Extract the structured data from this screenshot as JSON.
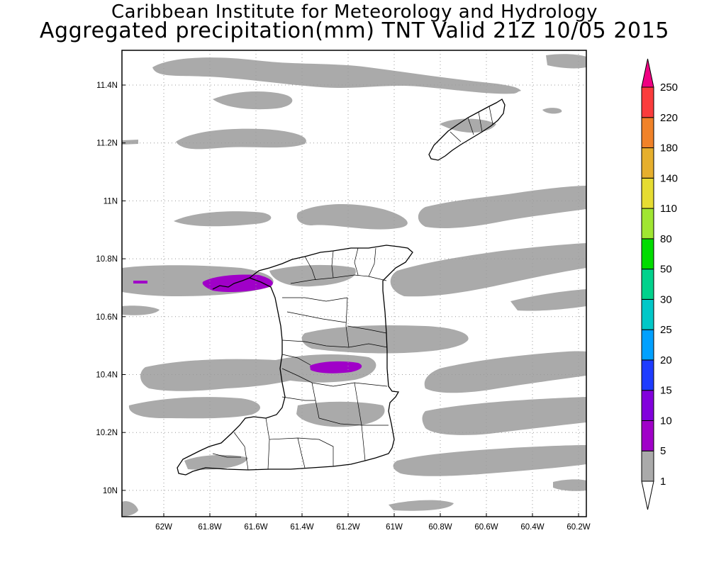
{
  "header": {
    "line1": "Caribbean Institute for Meteorology and Hydrology",
    "line2": "Aggregated precipitation(mm) TNT Valid 21Z 10/05 2015"
  },
  "axes": {
    "lon_ticks": [
      "62W",
      "61.8W",
      "61.6W",
      "61.4W",
      "61.2W",
      "61W",
      "60.8W",
      "60.6W",
      "60.4W",
      "60.2W"
    ],
    "lat_ticks": [
      "11.4N",
      "11.2N",
      "11N",
      "10.8N",
      "10.6N",
      "10.4N",
      "10.2N",
      "10N"
    ],
    "grid": true
  },
  "colorbar": {
    "labels": [
      "1",
      "5",
      "10",
      "15",
      "20",
      "25",
      "30",
      "50",
      "80",
      "110",
      "140",
      "180",
      "220",
      "250"
    ],
    "colors": [
      "#ffffff",
      "#aaaaaa",
      "#a000c8",
      "#8200dc",
      "#1e3cff",
      "#00a0ff",
      "#00c8c8",
      "#00d28c",
      "#00dc00",
      "#a0e632",
      "#e6dc32",
      "#e6af2d",
      "#f08228",
      "#fa3c3c",
      "#f00082"
    ]
  },
  "legend_colors": {
    "light_rain": "#aaaaaa",
    "moderate_rain": "#a000c8",
    "land_outline": "#000000"
  }
}
